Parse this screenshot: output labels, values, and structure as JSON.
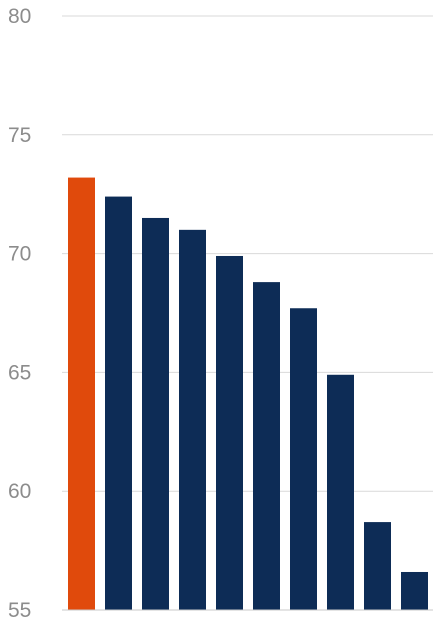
{
  "chart_data": {
    "type": "bar",
    "title": "",
    "xlabel": "",
    "ylabel": "",
    "ylim": [
      55,
      80
    ],
    "yticks": [
      55,
      60,
      65,
      70,
      75,
      80
    ],
    "grid": true,
    "legend": "none",
    "categories": [
      "",
      "",
      "",
      "",
      "",
      "",
      "",
      "",
      "",
      ""
    ],
    "values": [
      73.2,
      72.4,
      71.5,
      71.0,
      69.9,
      68.8,
      67.7,
      64.9,
      58.7,
      56.6
    ],
    "highlight_index": 0,
    "colors": {
      "highlight": "#e04a0c",
      "bar": "#0d2c56",
      "grid": "#d9d9d9",
      "tick_text": "#8c8c8c"
    }
  }
}
